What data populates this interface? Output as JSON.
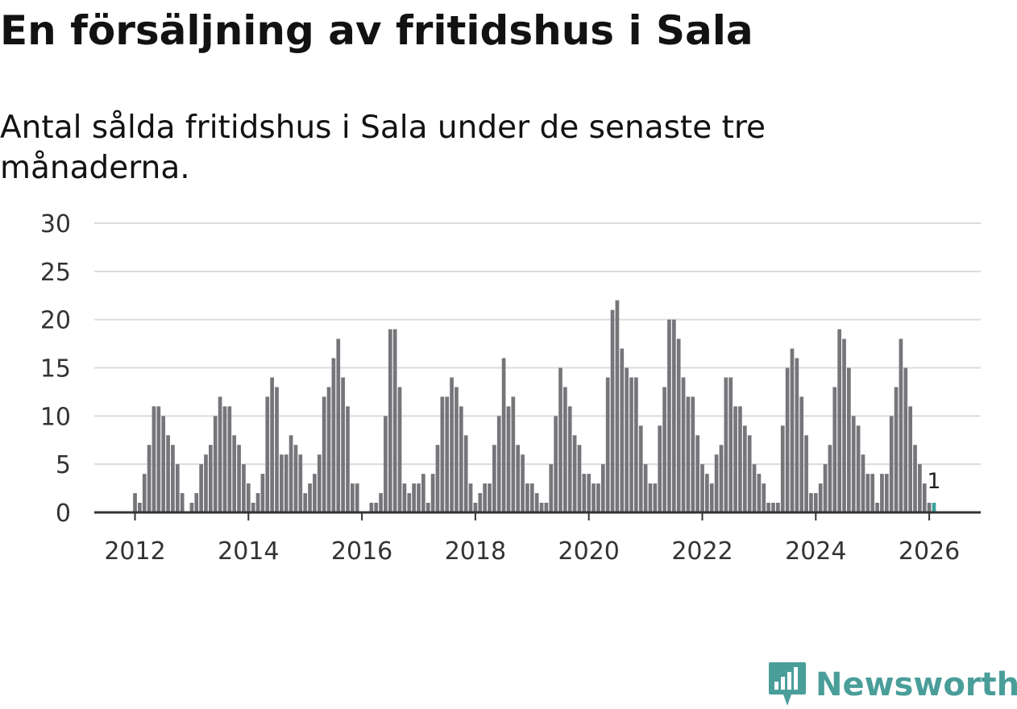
{
  "header": {
    "title": "En försäljning av fritidshus i Sala",
    "subtitle": "Antal sålda fritidshus i Sala under de senaste tre månaderna."
  },
  "brand": {
    "name": "Newsworthy",
    "color": "#4a9e9a",
    "icon": "newsworthy-logo-icon"
  },
  "chart_data": {
    "type": "bar",
    "xlabel": "",
    "ylabel": "",
    "ylim": [
      0,
      30
    ],
    "yticks": [
      "0",
      "5",
      "10",
      "15",
      "20",
      "25",
      "30"
    ],
    "xticks": [
      "2012",
      "2014",
      "2016",
      "2018",
      "2020",
      "2022",
      "2024",
      "2026"
    ],
    "grid": true,
    "bar_color": "#76757a",
    "highlight_color": "#3aa39c",
    "start": "2012-01",
    "values": [
      2,
      1,
      4,
      7,
      11,
      11,
      10,
      8,
      7,
      5,
      2,
      0,
      1,
      2,
      5,
      6,
      7,
      10,
      12,
      11,
      11,
      8,
      7,
      5,
      3,
      1,
      2,
      4,
      12,
      14,
      13,
      6,
      6,
      8,
      7,
      6,
      2,
      3,
      4,
      6,
      12,
      13,
      16,
      18,
      14,
      11,
      3,
      3,
      0,
      0,
      1,
      1,
      2,
      10,
      19,
      19,
      13,
      3,
      2,
      3,
      3,
      4,
      1,
      4,
      7,
      12,
      12,
      14,
      13,
      11,
      8,
      3,
      1,
      2,
      3,
      3,
      7,
      10,
      16,
      11,
      12,
      7,
      6,
      3,
      3,
      2,
      1,
      1,
      5,
      10,
      15,
      13,
      11,
      8,
      7,
      4,
      4,
      3,
      3,
      5,
      14,
      21,
      22,
      17,
      15,
      14,
      14,
      9,
      5,
      3,
      3,
      9,
      13,
      20,
      20,
      18,
      14,
      12,
      12,
      8,
      5,
      4,
      3,
      6,
      7,
      14,
      14,
      11,
      11,
      9,
      8,
      5,
      4,
      3,
      1,
      1,
      1,
      9,
      15,
      17,
      16,
      12,
      8,
      2,
      2,
      3,
      5,
      7,
      13,
      19,
      18,
      15,
      10,
      9,
      6,
      4,
      4,
      1,
      4,
      4,
      10,
      13,
      18,
      15,
      11,
      7,
      5,
      3,
      1,
      1
    ],
    "highlight_last": true,
    "last_value_label": "1"
  }
}
